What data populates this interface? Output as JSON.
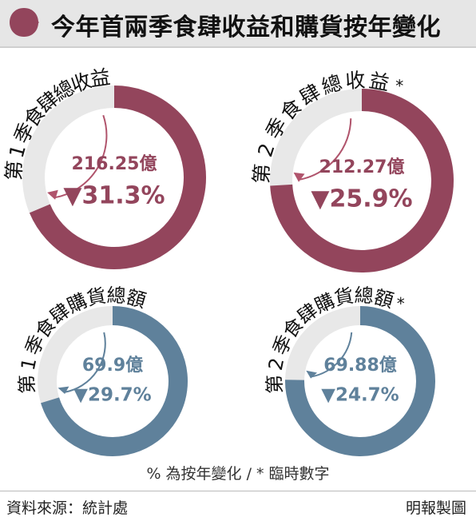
{
  "title": "今年首兩季食肆收益和購貨按年變化",
  "colors": {
    "revenue": "#93455c",
    "purchases": "#5f819b",
    "track": "#e8e8e8",
    "arrow": "#b0546c",
    "arrow_blue": "#5f819b"
  },
  "chart_data": [
    {
      "type": "pie",
      "title": "第1季食肆總收益",
      "value_label": "216.25億",
      "change_label": "▼31.3%",
      "value": 216.25,
      "unit": "億",
      "change_pct": -31.3,
      "provisional": false,
      "color": "#93455c"
    },
    {
      "type": "pie",
      "title": "第2季食肆總收益",
      "marker": "*",
      "value_label": "212.27億",
      "change_label": "▼25.9%",
      "value": 212.27,
      "unit": "億",
      "change_pct": -25.9,
      "provisional": true,
      "color": "#93455c"
    },
    {
      "type": "pie",
      "title": "第1季食肆購貨總額",
      "value_label": "69.9億",
      "change_label": "▼29.7%",
      "value": 69.9,
      "unit": "億",
      "change_pct": -29.7,
      "provisional": false,
      "color": "#5f819b"
    },
    {
      "type": "pie",
      "title": "第2季食肆購貨總額",
      "marker": "*",
      "value_label": "69.88億",
      "change_label": "▼24.7%",
      "value": 69.88,
      "unit": "億",
      "change_pct": -24.7,
      "provisional": true,
      "color": "#5f819b"
    }
  ],
  "footnote": "% 為按年變化 / * 臨時數字",
  "source": "資料來源：統計處",
  "credit": "明報製圖"
}
